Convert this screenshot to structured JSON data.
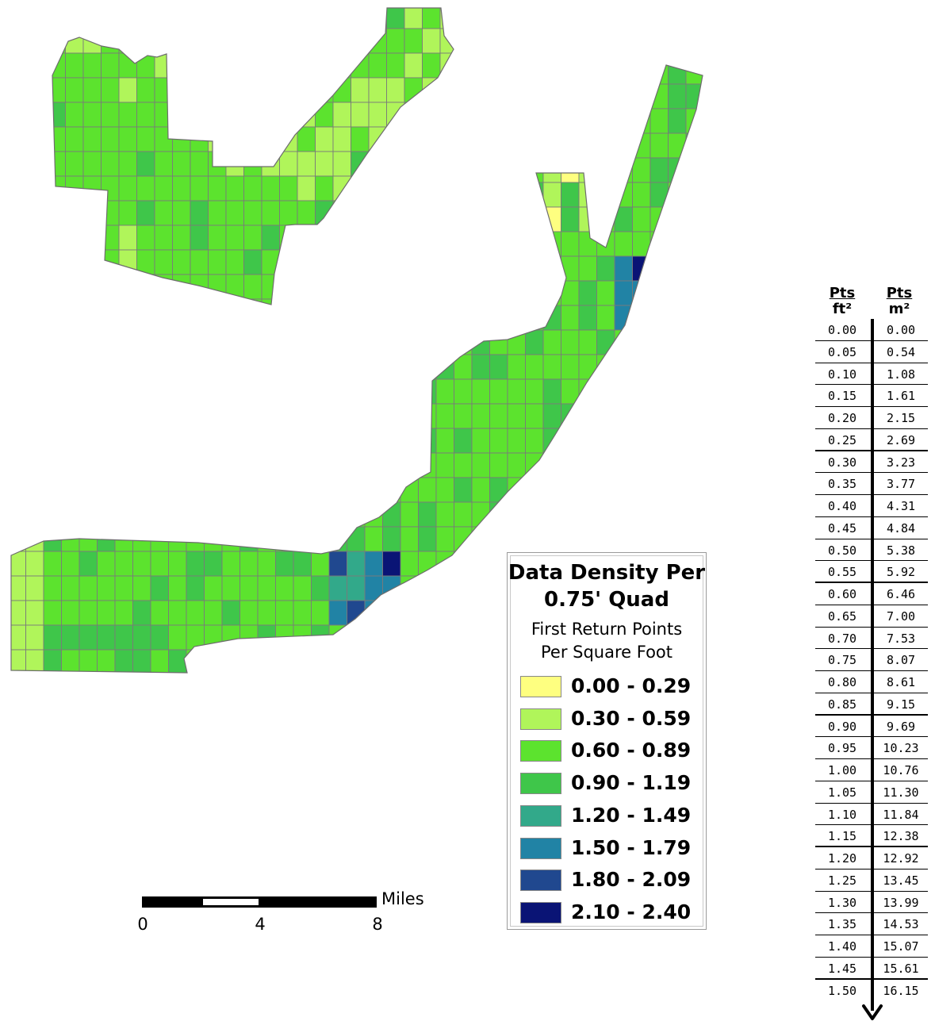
{
  "legend": {
    "title_line1": "Data Density Per",
    "title_line2": "0.75' Quad",
    "subtitle_line1": "First Return Points",
    "subtitle_line2": "Per Square Foot",
    "classes": [
      {
        "label": "0.00 - 0.29",
        "color": "#feff80"
      },
      {
        "label": "0.30 - 0.59",
        "color": "#b0f55a"
      },
      {
        "label": "0.60 - 0.89",
        "color": "#5ce32e"
      },
      {
        "label": "0.90 - 1.19",
        "color": "#3fc64a"
      },
      {
        "label": "1.20 - 1.49",
        "color": "#32a98a"
      },
      {
        "label": "1.50 - 1.79",
        "color": "#2183a5"
      },
      {
        "label": "1.80 - 2.09",
        "color": "#20488f"
      },
      {
        "label": "2.10 - 2.40",
        "color": "#0a1475"
      }
    ]
  },
  "scalebar": {
    "unit": "Miles",
    "labels": [
      "0",
      "4",
      "8"
    ]
  },
  "conversion": {
    "head_left_top": "Pts",
    "head_left_bottom": "ft²",
    "head_right_top": "Pts",
    "head_right_bottom": "m²",
    "rows": [
      [
        "0.00",
        "0.00"
      ],
      [
        "0.05",
        "0.54"
      ],
      [
        "0.10",
        "1.08"
      ],
      [
        "0.15",
        "1.61"
      ],
      [
        "0.20",
        "2.15"
      ],
      [
        "0.25",
        "2.69"
      ],
      [
        "0.30",
        "3.23"
      ],
      [
        "0.35",
        "3.77"
      ],
      [
        "0.40",
        "4.31"
      ],
      [
        "0.45",
        "4.84"
      ],
      [
        "0.50",
        "5.38"
      ],
      [
        "0.55",
        "5.92"
      ],
      [
        "0.60",
        "6.46"
      ],
      [
        "0.65",
        "7.00"
      ],
      [
        "0.70",
        "7.53"
      ],
      [
        "0.75",
        "8.07"
      ],
      [
        "0.80",
        "8.61"
      ],
      [
        "0.85",
        "9.15"
      ],
      [
        "0.90",
        "9.69"
      ],
      [
        "0.95",
        "10.23"
      ],
      [
        "1.00",
        "10.76"
      ],
      [
        "1.05",
        "11.30"
      ],
      [
        "1.10",
        "11.84"
      ],
      [
        "1.15",
        "12.38"
      ],
      [
        "1.20",
        "12.92"
      ],
      [
        "1.25",
        "13.45"
      ],
      [
        "1.30",
        "13.99"
      ],
      [
        "1.35",
        "14.53"
      ],
      [
        "1.40",
        "15.07"
      ],
      [
        "1.45",
        "15.61"
      ],
      [
        "1.50",
        "16.15"
      ]
    ]
  }
}
